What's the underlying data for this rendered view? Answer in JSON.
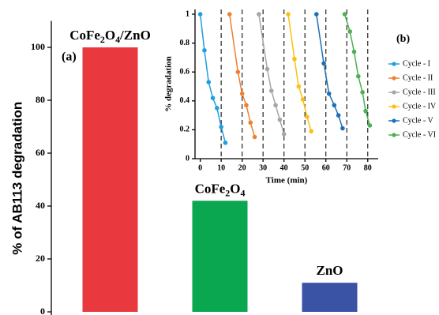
{
  "chart_data": [
    {
      "type": "bar",
      "ylabel": "% of AB113 degradation",
      "annotation": "(a)",
      "categories": [
        "CoFe2O4/ZnO",
        "CoFe2O4",
        "ZnO"
      ],
      "values": [
        100,
        42,
        11
      ],
      "colors": [
        "#e9383e",
        "#0ba650",
        "#3a53a4"
      ],
      "ylim": [
        0,
        110
      ],
      "yticks": [
        0,
        20,
        40,
        60,
        80,
        100
      ]
    },
    {
      "type": "line",
      "xlabel": "Time (min)",
      "ylabel": "% degradation",
      "annotation": "(b)",
      "xlim": [
        -2.5,
        85
      ],
      "xticks": [
        0,
        10,
        20,
        30,
        40,
        50,
        60,
        70,
        80
      ],
      "ylim": [
        0,
        1
      ],
      "yticks": [
        0,
        0.2,
        0.4,
        0.6,
        0.8,
        1
      ],
      "vlines": [
        10,
        20,
        30,
        40,
        50,
        60,
        70,
        80
      ],
      "series": [
        {
          "name": "Cycle - I",
          "color": "#1f9fe0",
          "x": [
            0,
            2,
            4,
            6,
            8,
            10,
            12
          ],
          "values": [
            1,
            0.75,
            0.53,
            0.42,
            0.35,
            0.22,
            0.11
          ]
        },
        {
          "name": "Cycle - II",
          "color": "#f07f31",
          "x": [
            14,
            18,
            20,
            22,
            24,
            26
          ],
          "values": [
            1,
            0.6,
            0.45,
            0.37,
            0.25,
            0.15
          ]
        },
        {
          "name": "Cycle - III",
          "color": "#a6a6a6",
          "x": [
            28,
            32,
            34,
            36,
            38,
            40
          ],
          "values": [
            1,
            0.62,
            0.47,
            0.37,
            0.27,
            0.17
          ]
        },
        {
          "name": "Cycle - IV",
          "color": "#fdc011",
          "x": [
            42,
            45,
            47,
            49,
            51,
            53
          ],
          "values": [
            1,
            0.69,
            0.5,
            0.41,
            0.29,
            0.19
          ]
        },
        {
          "name": "Cycle - V",
          "color": "#1f6fb5",
          "x": [
            55.5,
            59,
            61.5,
            64,
            66,
            68
          ],
          "values": [
            1,
            0.66,
            0.45,
            0.37,
            0.3,
            0.21
          ]
        },
        {
          "name": "Cycle - VI",
          "color": "#4caf50",
          "x": [
            69,
            71.5,
            73.5,
            75.5,
            77.5,
            79,
            81
          ],
          "values": [
            1,
            0.88,
            0.74,
            0.57,
            0.46,
            0.33,
            0.23
          ]
        }
      ]
    }
  ]
}
